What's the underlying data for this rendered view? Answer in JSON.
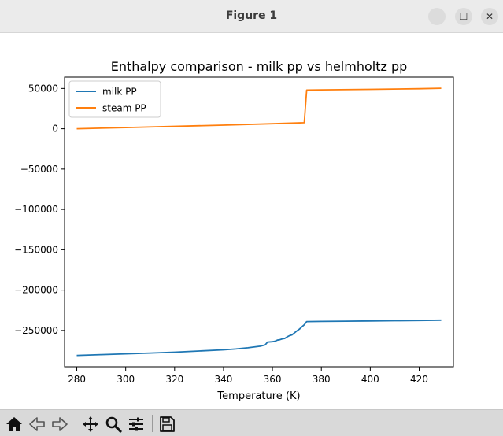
{
  "window": {
    "title": "Figure 1",
    "controls": {
      "minimize_glyph": "—",
      "maximize_glyph": "☐",
      "close_glyph": "✕"
    }
  },
  "toolbar": {
    "icons": [
      "home-icon",
      "back-icon",
      "forward-icon",
      "pan-icon",
      "zoom-icon",
      "configure-subplots-icon",
      "save-icon"
    ]
  },
  "chart_data": {
    "type": "line",
    "title": "Enthalpy comparison - milk pp vs helmholtz pp",
    "xlabel": "Temperature (K)",
    "ylabel": "",
    "xlim": [
      275,
      434
    ],
    "ylim": [
      -295000,
      64000
    ],
    "xticks": [
      280,
      300,
      320,
      340,
      360,
      380,
      400,
      420
    ],
    "yticks": [
      50000,
      0,
      -50000,
      -100000,
      -150000,
      -200000,
      -250000
    ],
    "ytick_labels": [
      "50000",
      "0",
      "−50000",
      "−100000",
      "−150000",
      "−200000",
      "−250000"
    ],
    "grid": false,
    "legend_position": "top-left",
    "series": [
      {
        "name": "milk PP",
        "color": "#1f77b4",
        "x": [
          280,
          290,
          300,
          310,
          320,
          330,
          340,
          345,
          350,
          355,
          357,
          358,
          360,
          361,
          362,
          363,
          364,
          365,
          366,
          367,
          368,
          369,
          370,
          371,
          372,
          373,
          374,
          380,
          390,
          400,
          410,
          420,
          429
        ],
        "y": [
          -281000,
          -280000,
          -279000,
          -278000,
          -277000,
          -275500,
          -274000,
          -273000,
          -271500,
          -269500,
          -268000,
          -264500,
          -264000,
          -263500,
          -262000,
          -261500,
          -260500,
          -260000,
          -258000,
          -256500,
          -255500,
          -253000,
          -250500,
          -248500,
          -245500,
          -243000,
          -239000,
          -238800,
          -238500,
          -238200,
          -237900,
          -237600,
          -237200
        ]
      },
      {
        "name": "steam PP",
        "color": "#ff7f0e",
        "x": [
          280,
          300,
          320,
          340,
          360,
          373,
          374,
          380,
          400,
          420,
          429
        ],
        "y": [
          0,
          1500,
          3000,
          4500,
          6200,
          7500,
          48000,
          48300,
          48900,
          49700,
          50200
        ]
      }
    ]
  }
}
